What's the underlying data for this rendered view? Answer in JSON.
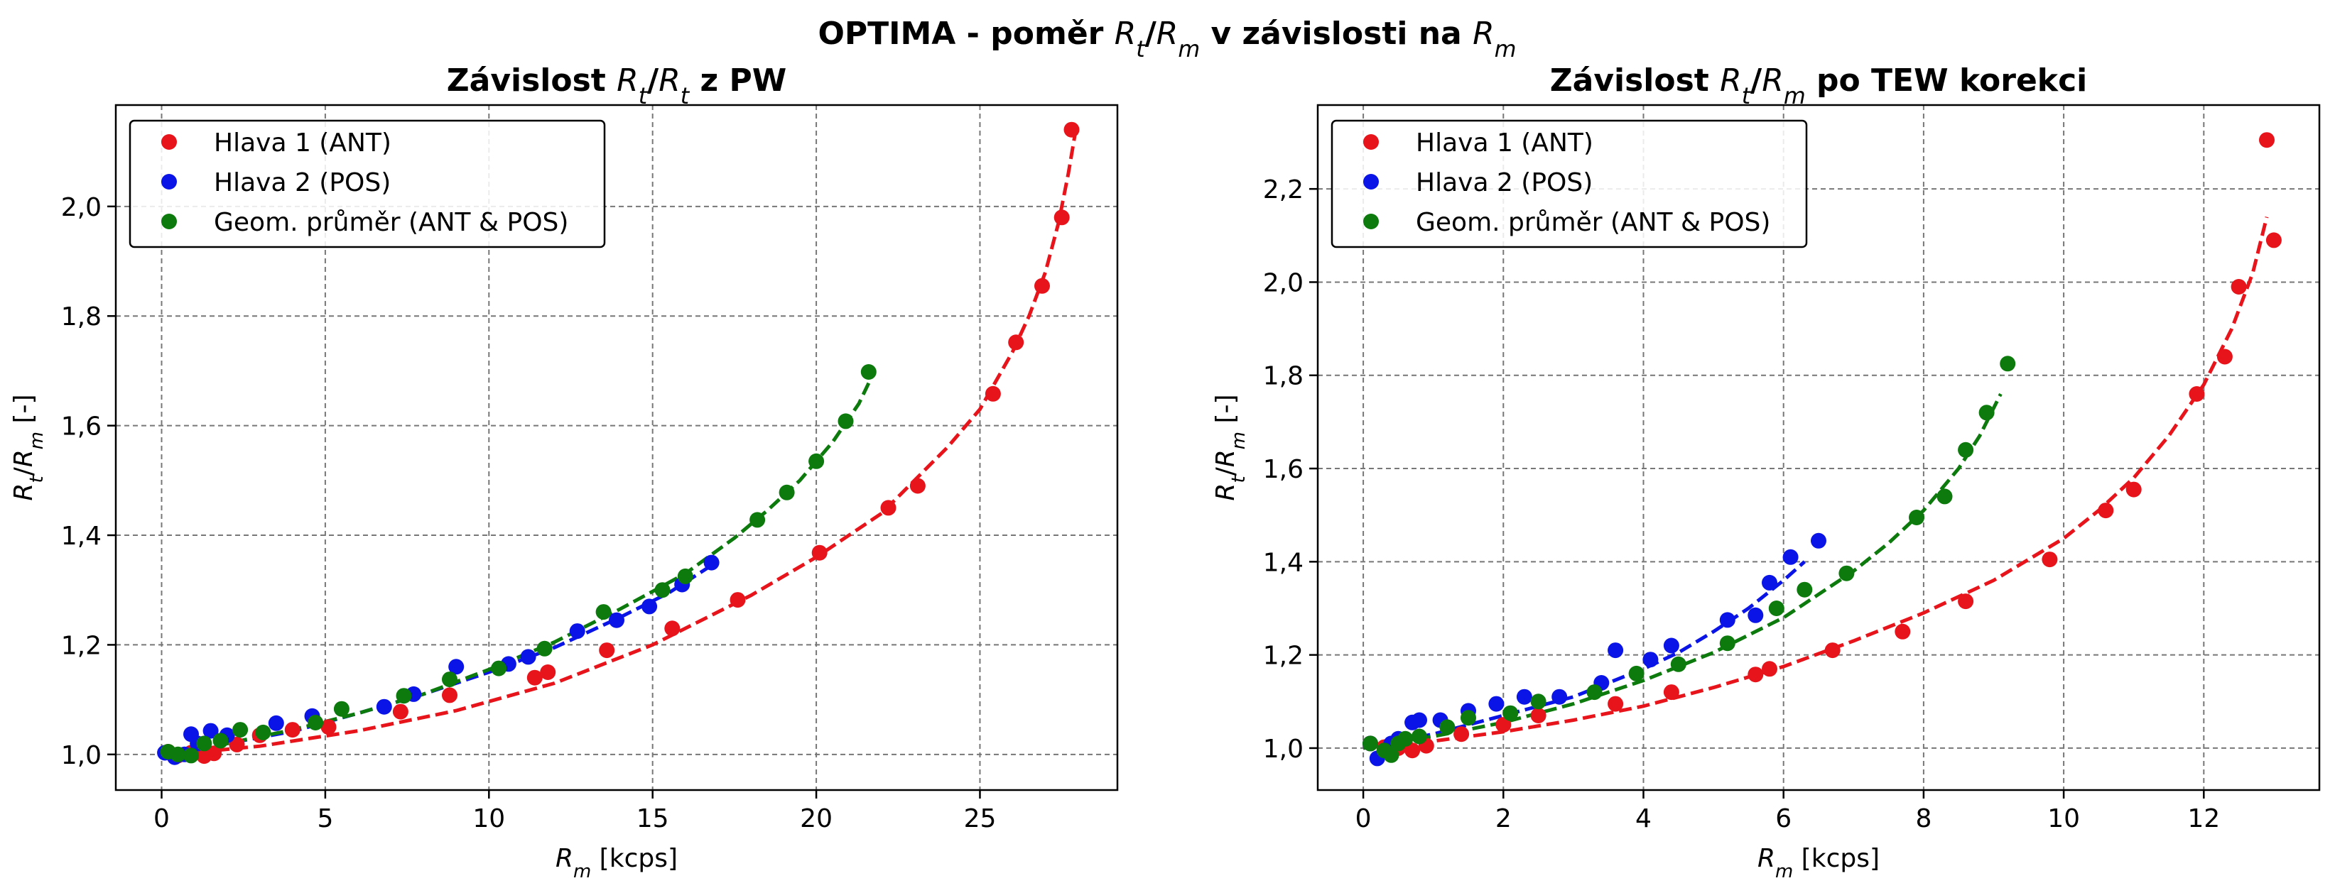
{
  "figure": {
    "suptitle": "OPTIMA - poměr Rt/Rm v závislosti na Rm",
    "suptitle_parts": [
      "OPTIMA - poměr ",
      "R",
      "t",
      "/",
      "R",
      "m",
      " v závislosti na ",
      "R",
      "m"
    ]
  },
  "colors": {
    "ant": "#e8141b",
    "pos": "#0a14e6",
    "geom": "#0d7a0d",
    "grid": "#777777"
  },
  "chart_data": [
    {
      "type": "scatter",
      "title": "Závislost Rt/Rt z PW",
      "title_parts": [
        "Závislost ",
        "R",
        "t",
        "/",
        "R",
        "t",
        " z PW"
      ],
      "xlabel": "Rm [kcps]",
      "xlabel_parts": [
        "R",
        "m",
        " [kcps]"
      ],
      "ylabel": "Rt/Rm [-]",
      "ylabel_parts": [
        "R",
        "t",
        "/",
        "R",
        "m",
        " [-]"
      ],
      "xlim": [
        -1.4,
        29.2
      ],
      "ylim": [
        0.935,
        2.185
      ],
      "xticks": [
        0,
        5,
        10,
        15,
        20,
        25
      ],
      "xtick_labels": [
        "0",
        "5",
        "10",
        "15",
        "20",
        "25"
      ],
      "yticks": [
        1.0,
        1.2,
        1.4,
        1.6,
        1.8,
        2.0
      ],
      "ytick_labels": [
        "1,0",
        "1,2",
        "1,4",
        "1,6",
        "1,8",
        "2,0"
      ],
      "grid": true,
      "legend_position": "top-left",
      "series": [
        {
          "name": "Hlava 1 (ANT)",
          "key": "ant",
          "points": [
            [
              0.2,
              1.005
            ],
            [
              0.5,
              0.998
            ],
            [
              0.9,
              1.003
            ],
            [
              1.3,
              0.997
            ],
            [
              1.6,
              1.002
            ],
            [
              2.3,
              1.018
            ],
            [
              3.0,
              1.035
            ],
            [
              4.0,
              1.045
            ],
            [
              5.1,
              1.05
            ],
            [
              7.3,
              1.078
            ],
            [
              8.8,
              1.108
            ],
            [
              11.4,
              1.14
            ],
            [
              11.8,
              1.15
            ],
            [
              13.6,
              1.19
            ],
            [
              15.6,
              1.23
            ],
            [
              17.6,
              1.282
            ],
            [
              20.1,
              1.368
            ],
            [
              22.2,
              1.45
            ],
            [
              23.1,
              1.49
            ],
            [
              25.4,
              1.658
            ],
            [
              26.1,
              1.752
            ],
            [
              26.9,
              1.855
            ],
            [
              27.5,
              1.98
            ],
            [
              27.8,
              2.14
            ]
          ],
          "fit": [
            [
              0.0,
              0.998
            ],
            [
              3.0,
              1.015
            ],
            [
              6.0,
              1.043
            ],
            [
              9.0,
              1.08
            ],
            [
              12.0,
              1.13
            ],
            [
              15.0,
              1.2
            ],
            [
              18.0,
              1.29
            ],
            [
              20.0,
              1.36
            ],
            [
              22.0,
              1.44
            ],
            [
              24.0,
              1.56
            ],
            [
              25.0,
              1.63
            ],
            [
              26.0,
              1.735
            ],
            [
              26.5,
              1.8
            ],
            [
              27.0,
              1.88
            ],
            [
              27.4,
              1.97
            ],
            [
              27.7,
              2.06
            ],
            [
              27.9,
              2.13
            ]
          ]
        },
        {
          "name": "Hlava 2 (POS)",
          "key": "pos",
          "points": [
            [
              0.1,
              1.003
            ],
            [
              0.4,
              0.995
            ],
            [
              0.7,
              1.0
            ],
            [
              0.9,
              1.037
            ],
            [
              1.1,
              1.02
            ],
            [
              1.5,
              1.043
            ],
            [
              2.0,
              1.035
            ],
            [
              3.5,
              1.057
            ],
            [
              4.6,
              1.07
            ],
            [
              6.8,
              1.087
            ],
            [
              7.7,
              1.11
            ],
            [
              9.0,
              1.16
            ],
            [
              10.6,
              1.165
            ],
            [
              11.2,
              1.178
            ],
            [
              12.7,
              1.225
            ],
            [
              13.9,
              1.245
            ],
            [
              14.9,
              1.27
            ],
            [
              15.9,
              1.31
            ],
            [
              16.8,
              1.35
            ]
          ],
          "fit": [
            [
              0.0,
              1.0
            ],
            [
              2.0,
              1.02
            ],
            [
              4.0,
              1.042
            ],
            [
              6.0,
              1.075
            ],
            [
              8.0,
              1.11
            ],
            [
              10.0,
              1.15
            ],
            [
              12.0,
              1.195
            ],
            [
              14.0,
              1.25
            ],
            [
              15.5,
              1.295
            ],
            [
              16.8,
              1.345
            ]
          ]
        },
        {
          "name": "Geom. průměr (ANT & POS)",
          "key": "geom",
          "points": [
            [
              0.2,
              1.005
            ],
            [
              0.5,
              1.0
            ],
            [
              0.9,
              0.998
            ],
            [
              1.3,
              1.02
            ],
            [
              1.8,
              1.025
            ],
            [
              2.4,
              1.045
            ],
            [
              3.1,
              1.04
            ],
            [
              4.7,
              1.058
            ],
            [
              5.5,
              1.083
            ],
            [
              7.4,
              1.107
            ],
            [
              8.8,
              1.137
            ],
            [
              10.3,
              1.157
            ],
            [
              11.7,
              1.193
            ],
            [
              13.5,
              1.26
            ],
            [
              15.3,
              1.3
            ],
            [
              16.0,
              1.325
            ],
            [
              18.2,
              1.428
            ],
            [
              19.1,
              1.478
            ],
            [
              20.0,
              1.535
            ],
            [
              20.9,
              1.608
            ],
            [
              21.6,
              1.698
            ]
          ],
          "fit": [
            [
              0.0,
              1.0
            ],
            [
              2.0,
              1.02
            ],
            [
              4.0,
              1.045
            ],
            [
              6.0,
              1.075
            ],
            [
              8.0,
              1.11
            ],
            [
              10.0,
              1.155
            ],
            [
              12.0,
              1.205
            ],
            [
              14.0,
              1.265
            ],
            [
              16.0,
              1.33
            ],
            [
              17.5,
              1.395
            ],
            [
              18.5,
              1.445
            ],
            [
              19.5,
              1.5
            ],
            [
              20.5,
              1.57
            ],
            [
              21.3,
              1.64
            ],
            [
              21.7,
              1.69
            ]
          ]
        }
      ]
    },
    {
      "type": "scatter",
      "title": "Závislost Rt/Rm po TEW korekci",
      "title_parts": [
        "Závislost ",
        "R",
        "t",
        "/",
        "R",
        "m",
        " po TEW korekci"
      ],
      "xlabel": "Rm [kcps]",
      "xlabel_parts": [
        "R",
        "m",
        " [kcps]"
      ],
      "ylabel": "Rt/Rm [-]",
      "ylabel_parts": [
        "R",
        "t",
        "/",
        "R",
        "m",
        " [-]"
      ],
      "xlim": [
        -0.65,
        13.65
      ],
      "ylim": [
        0.91,
        2.38
      ],
      "xticks": [
        0,
        2,
        4,
        6,
        8,
        10,
        12
      ],
      "xtick_labels": [
        "0",
        "2",
        "4",
        "6",
        "8",
        "10",
        "12"
      ],
      "yticks": [
        1.0,
        1.2,
        1.4,
        1.6,
        1.8,
        2.0,
        2.2
      ],
      "ytick_labels": [
        "1,0",
        "1,2",
        "1,4",
        "1,6",
        "1,8",
        "2,0",
        "2,2"
      ],
      "grid": true,
      "legend_position": "top-left",
      "series": [
        {
          "name": "Hlava 1 (ANT)",
          "key": "ant",
          "points": [
            [
              0.1,
              1.01
            ],
            [
              0.3,
              1.002
            ],
            [
              0.5,
              1.0
            ],
            [
              0.7,
              0.995
            ],
            [
              0.9,
              1.005
            ],
            [
              1.4,
              1.03
            ],
            [
              2.0,
              1.05
            ],
            [
              2.5,
              1.07
            ],
            [
              3.6,
              1.095
            ],
            [
              4.4,
              1.12
            ],
            [
              5.6,
              1.158
            ],
            [
              5.8,
              1.17
            ],
            [
              6.7,
              1.21
            ],
            [
              7.7,
              1.25
            ],
            [
              8.6,
              1.315
            ],
            [
              9.8,
              1.405
            ],
            [
              10.6,
              1.51
            ],
            [
              11.0,
              1.555
            ],
            [
              11.9,
              1.76
            ],
            [
              12.3,
              1.84
            ],
            [
              12.5,
              1.99
            ],
            [
              12.9,
              2.305
            ],
            [
              13.0,
              2.09
            ]
          ],
          "fit": [
            [
              0.0,
              1.0
            ],
            [
              1.0,
              1.015
            ],
            [
              2.0,
              1.035
            ],
            [
              3.0,
              1.06
            ],
            [
              4.0,
              1.09
            ],
            [
              5.0,
              1.13
            ],
            [
              6.0,
              1.175
            ],
            [
              7.0,
              1.23
            ],
            [
              8.0,
              1.29
            ],
            [
              9.0,
              1.36
            ],
            [
              10.0,
              1.45
            ],
            [
              10.5,
              1.51
            ],
            [
              11.0,
              1.58
            ],
            [
              11.5,
              1.67
            ],
            [
              12.0,
              1.78
            ],
            [
              12.4,
              1.9
            ],
            [
              12.7,
              2.02
            ],
            [
              12.9,
              2.14
            ]
          ]
        },
        {
          "name": "Hlava 2 (POS)",
          "key": "pos",
          "points": [
            [
              0.1,
              1.01
            ],
            [
              0.2,
              0.978
            ],
            [
              0.4,
              1.01
            ],
            [
              0.5,
              1.02
            ],
            [
              0.7,
              1.055
            ],
            [
              0.8,
              1.06
            ],
            [
              1.1,
              1.06
            ],
            [
              1.5,
              1.08
            ],
            [
              1.9,
              1.095
            ],
            [
              2.3,
              1.11
            ],
            [
              2.8,
              1.11
            ],
            [
              3.4,
              1.14
            ],
            [
              3.6,
              1.21
            ],
            [
              4.1,
              1.19
            ],
            [
              4.4,
              1.22
            ],
            [
              5.2,
              1.275
            ],
            [
              5.6,
              1.285
            ],
            [
              5.8,
              1.355
            ],
            [
              6.1,
              1.41
            ],
            [
              6.5,
              1.445
            ]
          ],
          "fit": [
            [
              0.0,
              1.0
            ],
            [
              1.0,
              1.03
            ],
            [
              2.0,
              1.07
            ],
            [
              3.0,
              1.11
            ],
            [
              4.0,
              1.17
            ],
            [
              4.5,
              1.205
            ],
            [
              5.0,
              1.25
            ],
            [
              5.5,
              1.3
            ],
            [
              6.0,
              1.36
            ],
            [
              6.3,
              1.4
            ]
          ]
        },
        {
          "name": "Geom. průměr (ANT & POS)",
          "key": "geom",
          "points": [
            [
              0.1,
              1.01
            ],
            [
              0.3,
              0.995
            ],
            [
              0.4,
              0.985
            ],
            [
              0.5,
              1.01
            ],
            [
              0.6,
              1.02
            ],
            [
              0.8,
              1.025
            ],
            [
              1.2,
              1.045
            ],
            [
              1.5,
              1.065
            ],
            [
              2.1,
              1.075
            ],
            [
              2.5,
              1.1
            ],
            [
              3.3,
              1.12
            ],
            [
              3.9,
              1.16
            ],
            [
              4.5,
              1.18
            ],
            [
              5.2,
              1.225
            ],
            [
              5.9,
              1.3
            ],
            [
              6.3,
              1.34
            ],
            [
              6.9,
              1.375
            ],
            [
              7.9,
              1.495
            ],
            [
              8.3,
              1.54
            ],
            [
              8.6,
              1.64
            ],
            [
              8.9,
              1.72
            ],
            [
              9.2,
              1.825
            ]
          ],
          "fit": [
            [
              0.0,
              1.0
            ],
            [
              1.0,
              1.025
            ],
            [
              2.0,
              1.055
            ],
            [
              3.0,
              1.095
            ],
            [
              4.0,
              1.145
            ],
            [
              5.0,
              1.205
            ],
            [
              6.0,
              1.28
            ],
            [
              7.0,
              1.38
            ],
            [
              7.5,
              1.44
            ],
            [
              8.0,
              1.51
            ],
            [
              8.5,
              1.6
            ],
            [
              8.8,
              1.67
            ],
            [
              9.1,
              1.76
            ]
          ]
        }
      ]
    }
  ]
}
